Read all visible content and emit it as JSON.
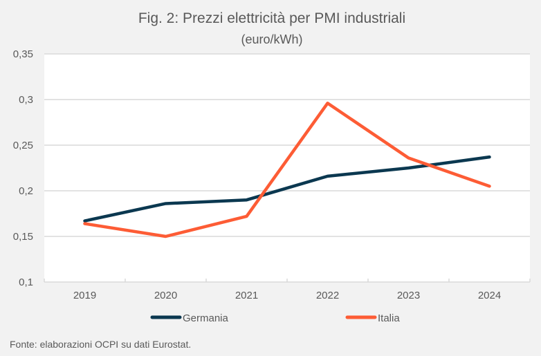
{
  "chart_data": {
    "type": "line",
    "title": "Fig. 2: Prezzi elettricità per PMI industriali",
    "subtitle": "(euro/kWh)",
    "xlabel": "",
    "ylabel": "",
    "categories": [
      "2019",
      "2020",
      "2021",
      "2022",
      "2023",
      "2024"
    ],
    "ylim": [
      0.1,
      0.35
    ],
    "yticks": [
      0.1,
      0.15,
      0.2,
      0.25,
      0.3,
      0.35
    ],
    "ytick_labels": [
      "0,1",
      "0,15",
      "0,2",
      "0,25",
      "0,3",
      "0,35"
    ],
    "grid": true,
    "legend_position": "bottom",
    "series": [
      {
        "name": "Germania",
        "color": "#0b3850",
        "values": [
          0.167,
          0.186,
          0.19,
          0.216,
          0.225,
          0.237
        ]
      },
      {
        "name": "Italia",
        "color": "#fd5c35",
        "values": [
          0.164,
          0.15,
          0.172,
          0.296,
          0.236,
          0.205
        ]
      }
    ],
    "source": "Fonte: elaborazioni OCPI su dati Eurostat."
  }
}
